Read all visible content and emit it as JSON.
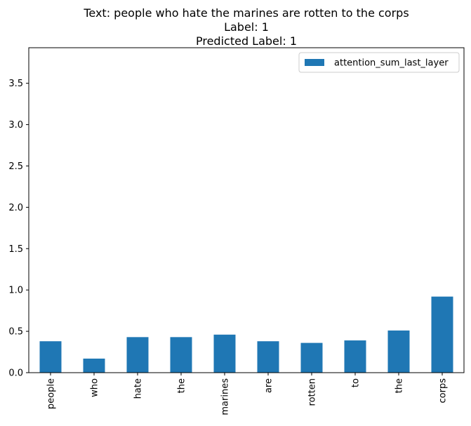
{
  "chart_data": {
    "type": "bar",
    "title_lines": [
      "Text: people who hate the marines are rotten to the corps",
      "Label: 1",
      "Predicted Label: 1"
    ],
    "xlabel": "",
    "ylabel": "",
    "categories": [
      "people",
      "who",
      "hate",
      "the",
      "marines",
      "are",
      "rotten",
      "to",
      "the",
      "corps"
    ],
    "series": [
      {
        "name": "attention_sum_last_layer",
        "color": "#1f77b4",
        "values": [
          0.38,
          0.17,
          0.43,
          0.43,
          0.46,
          0.38,
          0.36,
          0.39,
          0.51,
          0.92
        ]
      }
    ],
    "ylim": [
      0,
      3.93
    ],
    "yticks": [
      "0.0",
      "0.5",
      "1.0",
      "1.5",
      "2.0",
      "2.5",
      "3.0",
      "3.5"
    ],
    "grid": false,
    "legend_position": "top-right"
  }
}
